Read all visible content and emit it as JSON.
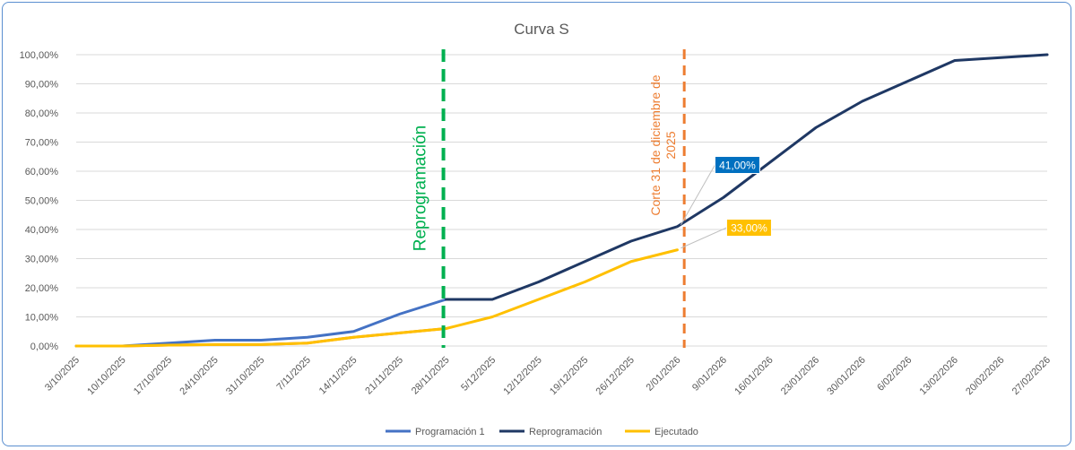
{
  "chart_data": {
    "type": "line",
    "title": "Curva S",
    "xlabel": "",
    "ylabel": "",
    "ylim": [
      0,
      100
    ],
    "yticks": [
      "0,00%",
      "10,00%",
      "20,00%",
      "30,00%",
      "40,00%",
      "50,00%",
      "60,00%",
      "70,00%",
      "80,00%",
      "90,00%",
      "100,00%"
    ],
    "categories": [
      "3/10/2025",
      "10/10/2025",
      "17/10/2025",
      "24/10/2025",
      "31/10/2025",
      "7/11/2025",
      "14/11/2025",
      "21/11/2025",
      "28/11/2025",
      "5/12/2025",
      "12/12/2025",
      "19/12/2025",
      "26/12/2025",
      "2/01/2026",
      "9/01/2026",
      "16/01/2026",
      "23/01/2026",
      "30/01/2026",
      "6/02/2026",
      "13/02/2026",
      "20/02/2026",
      "27/02/2026"
    ],
    "grid": true,
    "legend_position": "bottom",
    "series": [
      {
        "name": "Programación 1",
        "color": "#4472c4",
        "values": [
          0,
          0,
          1,
          2,
          2,
          3,
          5,
          11,
          16,
          null,
          null,
          null,
          null,
          null,
          null,
          null,
          null,
          null,
          null,
          null,
          null,
          null
        ]
      },
      {
        "name": "Reprogramación",
        "color": "#1f3864",
        "values": [
          null,
          null,
          null,
          null,
          null,
          null,
          null,
          null,
          16,
          16,
          22,
          29,
          36,
          41,
          51,
          63,
          75,
          84,
          91,
          98,
          99,
          100
        ]
      },
      {
        "name": "Ejecutado",
        "color": "#ffc000",
        "values": [
          0,
          0,
          0.3,
          0.5,
          0.5,
          1,
          3,
          4.5,
          6,
          10,
          16,
          22,
          29,
          33,
          null,
          null,
          null,
          null,
          null,
          null,
          null,
          null
        ]
      },
      {
        "name": "",
        "color": "#ed7d31",
        "values": [
          0,
          0,
          0.3,
          0.5,
          0.5,
          1,
          3,
          4.5,
          6,
          null,
          null,
          null,
          null,
          null,
          null,
          null,
          null,
          null,
          null,
          null,
          null,
          null
        ]
      }
    ],
    "vlines": [
      {
        "label": "Reprogramación",
        "at_category": "28/11/2025",
        "color": "#00b050"
      },
      {
        "label": "Corte 31 de diciembre de 2025",
        "label_line1": "Corte 31 de diciembre de",
        "label_line2": "2025",
        "at_category": "2/01/2026",
        "offset": 0.15,
        "color": "#ed7d31"
      }
    ],
    "data_labels": [
      {
        "text": "41,00%",
        "series": "Reprogramación",
        "at_category": "2/01/2026",
        "value": 41,
        "bg": "#0070c0",
        "fg": "#ffffff"
      },
      {
        "text": "33,00%",
        "series": "Ejecutado",
        "at_category": "2/01/2026",
        "value": 33,
        "bg": "#ffc000",
        "fg": "#ffffff"
      }
    ]
  }
}
